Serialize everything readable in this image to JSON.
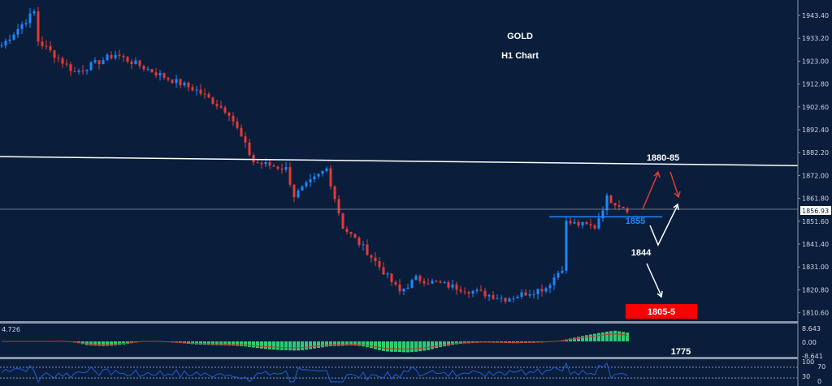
{
  "chart_data": {
    "type": "candlestick",
    "title": "GOLD",
    "subtitle": "H1 Chart",
    "ylim": [
      1805,
      1950
    ],
    "y_ticks": [
      "1943.40",
      "1933.20",
      "1923.00",
      "1912.80",
      "1902.60",
      "1892.40",
      "1882.20",
      "1872.00",
      "1861.80",
      "1851.60",
      "1841.40",
      "1831.00",
      "1820.80",
      "1810.60"
    ],
    "current_price": "1856.93",
    "price_path": [
      [
        0,
        1930
      ],
      [
        8,
        1945
      ],
      [
        9,
        1932
      ],
      [
        18,
        1918
      ],
      [
        28,
        1926
      ],
      [
        40,
        1916
      ],
      [
        48,
        1910
      ],
      [
        56,
        1900
      ],
      [
        62,
        1878
      ],
      [
        70,
        1875
      ],
      [
        72,
        1863
      ],
      [
        80,
        1875
      ],
      [
        84,
        1849
      ],
      [
        90,
        1838
      ],
      [
        98,
        1820
      ],
      [
        102,
        1826
      ],
      [
        112,
        1822
      ],
      [
        124,
        1817
      ],
      [
        134,
        1822
      ],
      [
        138,
        1831
      ],
      [
        139,
        1851
      ],
      [
        146,
        1849
      ],
      [
        149,
        1862
      ],
      [
        154,
        1857
      ]
    ],
    "trendline": {
      "start": 1880.4,
      "end": 1876.4
    },
    "support_line": {
      "value": 1855,
      "label": "1855"
    },
    "annotations": {
      "target_high": "1880-85",
      "mid": "1844",
      "target_low": "1805-5",
      "extra": "1775"
    },
    "macd": {
      "label": "4.726",
      "ticks": [
        "8.643",
        "0.00",
        "-8.641"
      ]
    },
    "rsi": {
      "ticks": [
        "100",
        "70",
        "30",
        "0"
      ],
      "levels": [
        70,
        30
      ]
    },
    "colors": {
      "background": "#0a1e3b",
      "bull": "#1e88ff",
      "bear": "#e53935",
      "macd_hist": "#2ecc71",
      "signal": "#c0392b",
      "rsi": "#1e5bd6",
      "target_box": "#ff0000"
    }
  }
}
